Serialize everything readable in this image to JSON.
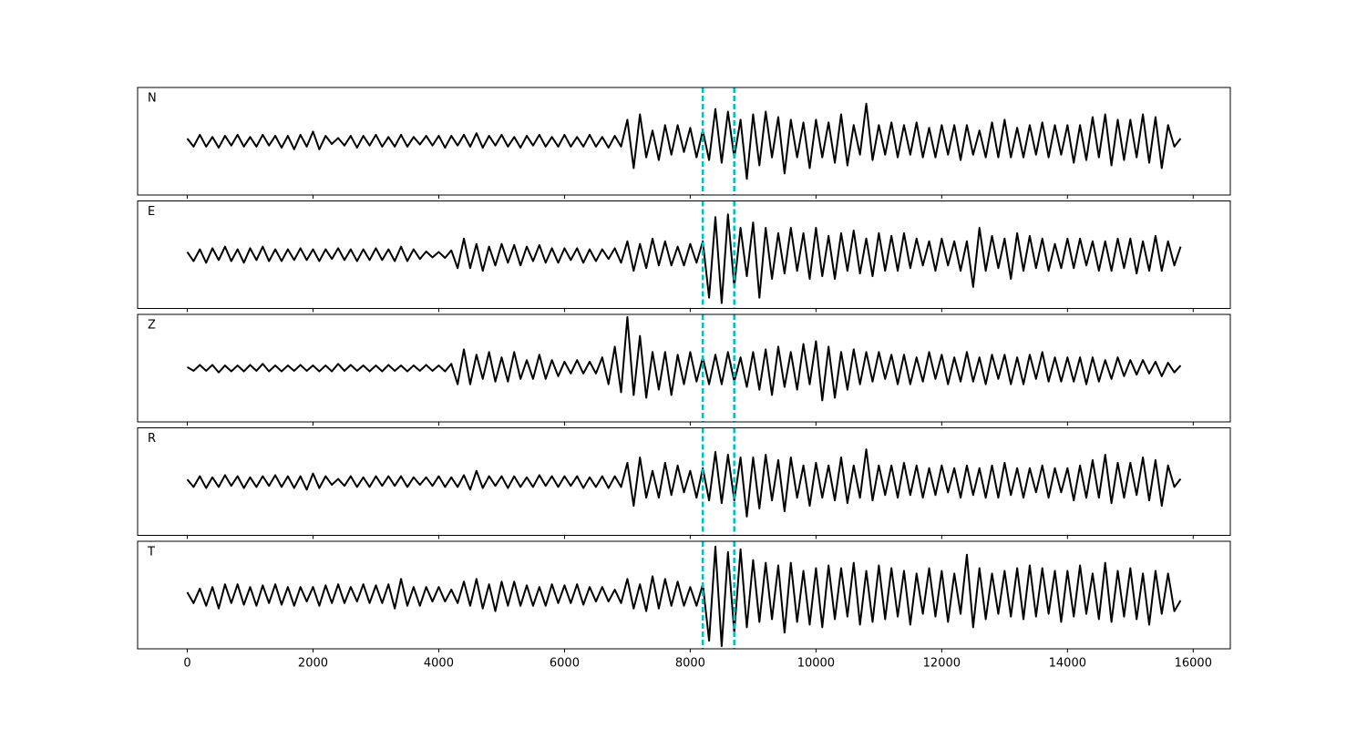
{
  "chart_data": {
    "type": "line",
    "x": [
      0,
      100,
      200,
      300,
      400,
      500,
      600,
      700,
      800,
      900,
      1000,
      1100,
      1200,
      1300,
      1400,
      1500,
      1600,
      1700,
      1800,
      1900,
      2000,
      2100,
      2200,
      2300,
      2400,
      2500,
      2600,
      2700,
      2800,
      2900,
      3000,
      3100,
      3200,
      3300,
      3400,
      3500,
      3600,
      3700,
      3800,
      3900,
      4000,
      4100,
      4200,
      4300,
      4400,
      4500,
      4600,
      4700,
      4800,
      4900,
      5000,
      5100,
      5200,
      5300,
      5400,
      5500,
      5600,
      5700,
      5800,
      5900,
      6000,
      6100,
      6200,
      6300,
      6400,
      6500,
      6600,
      6700,
      6800,
      6900,
      7000,
      7100,
      7200,
      7300,
      7400,
      7500,
      7600,
      7700,
      7800,
      7900,
      8000,
      8100,
      8200,
      8300,
      8400,
      8500,
      8600,
      8700,
      8800,
      8900,
      9000,
      9100,
      9200,
      9300,
      9400,
      9500,
      9600,
      9700,
      9800,
      9900,
      10000,
      10100,
      10200,
      10300,
      10400,
      10500,
      10600,
      10700,
      10800,
      10900,
      11000,
      11100,
      11200,
      11300,
      11400,
      11500,
      11600,
      11700,
      11800,
      11900,
      12000,
      12100,
      12200,
      12300,
      12400,
      12500,
      12600,
      12700,
      12800,
      12900,
      13000,
      13100,
      13200,
      13300,
      13400,
      13500,
      13600,
      13700,
      13800,
      13900,
      14000,
      14100,
      14200,
      14300,
      14400,
      14500,
      14600,
      14700,
      14800,
      14900,
      15000,
      15100,
      15200,
      15300,
      15400,
      15500,
      15600,
      15700,
      15800
    ],
    "series": [
      {
        "name": "N",
        "color": "#000000",
        "values": [
          0.05,
          -0.1,
          0.12,
          -0.1,
          0.08,
          -0.12,
          0.1,
          -0.08,
          0.12,
          -0.1,
          0.08,
          -0.1,
          0.12,
          -0.08,
          0.1,
          -0.12,
          0.1,
          -0.15,
          0.12,
          -0.1,
          0.18,
          -0.15,
          0.1,
          -0.05,
          0.06,
          -0.08,
          0.1,
          -0.12,
          0.1,
          -0.08,
          0.12,
          -0.1,
          0.08,
          -0.1,
          0.12,
          -0.1,
          0.08,
          -0.06,
          0.1,
          -0.08,
          0.1,
          -0.12,
          0.1,
          -0.08,
          0.12,
          -0.1,
          0.15,
          -0.12,
          0.1,
          -0.08,
          0.12,
          -0.1,
          0.08,
          -0.12,
          0.1,
          -0.08,
          0.12,
          -0.1,
          0.08,
          -0.1,
          0.12,
          -0.1,
          0.08,
          -0.1,
          0.12,
          -0.1,
          0.08,
          -0.12,
          0.1,
          -0.1,
          0.4,
          -0.5,
          0.5,
          -0.3,
          0.2,
          -0.35,
          0.3,
          -0.25,
          0.3,
          -0.2,
          0.25,
          -0.3,
          0.2,
          -0.35,
          0.6,
          -0.4,
          0.55,
          -0.3,
          0.4,
          -0.7,
          0.5,
          -0.45,
          0.55,
          -0.3,
          0.45,
          -0.6,
          0.4,
          -0.3,
          0.35,
          -0.5,
          0.4,
          -0.3,
          0.35,
          -0.4,
          0.5,
          -0.45,
          0.3,
          -0.25,
          0.7,
          -0.35,
          0.3,
          -0.25,
          0.35,
          -0.3,
          0.3,
          -0.25,
          0.35,
          -0.3,
          0.25,
          -0.3,
          0.3,
          -0.25,
          0.3,
          -0.35,
          0.3,
          -0.25,
          0.2,
          -0.3,
          0.35,
          -0.3,
          0.4,
          -0.3,
          0.25,
          -0.3,
          0.3,
          -0.25,
          0.35,
          -0.3,
          0.3,
          -0.25,
          0.3,
          -0.4,
          0.3,
          -0.35,
          0.45,
          -0.3,
          0.5,
          -0.45,
          0.4,
          -0.35,
          0.4,
          -0.3,
          0.5,
          -0.4,
          0.45,
          -0.5,
          0.3,
          -0.1,
          0.05
        ]
      },
      {
        "name": "E",
        "color": "#000000",
        "values": [
          0.05,
          -0.12,
          0.1,
          -0.15,
          0.12,
          -0.1,
          0.15,
          -0.12,
          0.1,
          -0.15,
          0.12,
          -0.1,
          0.15,
          -0.12,
          0.1,
          -0.12,
          0.1,
          -0.1,
          0.12,
          -0.1,
          0.1,
          -0.12,
          0.1,
          -0.08,
          0.12,
          -0.1,
          0.1,
          -0.12,
          0.1,
          -0.1,
          0.12,
          -0.1,
          0.1,
          -0.12,
          0.15,
          -0.12,
          0.1,
          -0.08,
          0.06,
          -0.05,
          0.05,
          -0.06,
          0.08,
          -0.25,
          0.3,
          -0.25,
          0.2,
          -0.3,
          0.15,
          -0.2,
          0.2,
          -0.15,
          0.18,
          -0.2,
          0.15,
          -0.12,
          0.18,
          -0.15,
          0.12,
          -0.15,
          0.12,
          -0.1,
          0.12,
          -0.15,
          0.1,
          -0.12,
          0.1,
          -0.08,
          0.12,
          -0.15,
          0.25,
          -0.3,
          0.2,
          -0.25,
          0.3,
          -0.2,
          0.25,
          -0.2,
          0.15,
          -0.2,
          0.2,
          -0.15,
          0.25,
          -0.8,
          0.7,
          -0.9,
          0.75,
          -0.6,
          0.5,
          -0.4,
          0.6,
          -0.8,
          0.5,
          -0.45,
          0.4,
          -0.35,
          0.5,
          -0.3,
          0.4,
          -0.45,
          0.5,
          -0.4,
          0.35,
          -0.45,
          0.4,
          -0.3,
          0.45,
          -0.35,
          0.3,
          -0.4,
          0.4,
          -0.3,
          0.35,
          -0.3,
          0.4,
          -0.25,
          0.3,
          -0.2,
          0.25,
          -0.3,
          0.3,
          -0.2,
          0.25,
          -0.3,
          0.25,
          -0.6,
          0.5,
          -0.3,
          0.35,
          -0.25,
          0.3,
          -0.45,
          0.4,
          -0.3,
          0.35,
          -0.25,
          0.3,
          -0.3,
          0.2,
          -0.25,
          0.3,
          -0.25,
          0.3,
          -0.2,
          0.25,
          -0.3,
          0.25,
          -0.3,
          0.3,
          -0.25,
          0.3,
          -0.35,
          0.25,
          -0.3,
          0.35,
          -0.3,
          0.25,
          -0.2,
          0.15
        ]
      },
      {
        "name": "Z",
        "color": "#000000",
        "values": [
          0.02,
          -0.05,
          0.06,
          -0.05,
          0.06,
          -0.08,
          0.05,
          -0.06,
          0.05,
          -0.06,
          0.06,
          -0.05,
          0.08,
          -0.06,
          0.05,
          -0.06,
          0.05,
          -0.05,
          0.06,
          -0.05,
          0.05,
          -0.06,
          0.05,
          -0.06,
          0.08,
          -0.05,
          0.06,
          -0.05,
          0.05,
          -0.06,
          0.05,
          -0.06,
          0.06,
          -0.05,
          0.05,
          -0.06,
          0.05,
          -0.05,
          0.06,
          -0.05,
          0.05,
          -0.06,
          0.08,
          -0.3,
          0.35,
          -0.3,
          0.25,
          -0.2,
          0.3,
          -0.25,
          0.2,
          -0.25,
          0.3,
          -0.2,
          0.15,
          -0.2,
          0.25,
          -0.2,
          0.15,
          -0.15,
          0.12,
          -0.1,
          0.15,
          -0.1,
          0.12,
          -0.1,
          0.2,
          -0.3,
          0.4,
          -0.45,
          0.95,
          -0.5,
          0.6,
          -0.55,
          0.3,
          -0.4,
          0.3,
          -0.5,
          0.25,
          -0.3,
          0.3,
          -0.25,
          0.2,
          -0.3,
          0.25,
          -0.3,
          0.3,
          -0.25,
          0.2,
          -0.35,
          0.3,
          -0.4,
          0.35,
          -0.5,
          0.4,
          -0.35,
          0.3,
          -0.4,
          0.45,
          -0.3,
          0.5,
          -0.6,
          0.4,
          -0.55,
          0.3,
          -0.4,
          0.35,
          -0.3,
          0.3,
          -0.25,
          0.3,
          -0.2,
          0.25,
          -0.3,
          0.25,
          -0.3,
          0.2,
          -0.25,
          0.3,
          -0.2,
          0.25,
          -0.3,
          0.2,
          -0.25,
          0.3,
          -0.25,
          0.2,
          -0.3,
          0.25,
          -0.2,
          0.25,
          -0.3,
          0.2,
          -0.3,
          0.25,
          -0.2,
          0.3,
          -0.25,
          0.2,
          -0.25,
          0.2,
          -0.25,
          0.2,
          -0.3,
          0.2,
          -0.25,
          0.15,
          -0.2,
          0.2,
          -0.15,
          0.15,
          -0.12,
          0.15,
          -0.1,
          0.12,
          -0.15,
          0.1,
          -0.08,
          0.05
        ]
      },
      {
        "name": "R",
        "color": "#000000",
        "values": [
          0.04,
          -0.1,
          0.1,
          -0.12,
          0.08,
          -0.1,
          0.12,
          -0.08,
          0.1,
          -0.12,
          0.08,
          -0.1,
          0.1,
          -0.08,
          0.12,
          -0.1,
          0.1,
          -0.12,
          0.1,
          -0.15,
          0.15,
          -0.12,
          0.1,
          -0.06,
          0.05,
          -0.08,
          0.1,
          -0.1,
          0.08,
          -0.1,
          0.1,
          -0.08,
          0.1,
          -0.08,
          0.1,
          -0.1,
          0.08,
          -0.06,
          0.08,
          -0.08,
          0.1,
          -0.1,
          0.08,
          -0.1,
          0.12,
          -0.15,
          0.2,
          -0.12,
          0.1,
          -0.08,
          0.1,
          -0.12,
          0.1,
          -0.1,
          0.08,
          -0.1,
          0.12,
          -0.08,
          0.1,
          -0.1,
          0.1,
          -0.08,
          0.1,
          -0.12,
          0.08,
          -0.1,
          0.1,
          -0.12,
          0.1,
          -0.1,
          0.35,
          -0.45,
          0.45,
          -0.3,
          0.2,
          -0.3,
          0.35,
          -0.25,
          0.3,
          -0.2,
          0.2,
          -0.3,
          0.25,
          -0.35,
          0.55,
          -0.4,
          0.5,
          -0.35,
          0.45,
          -0.65,
          0.45,
          -0.5,
          0.5,
          -0.35,
          0.4,
          -0.55,
          0.45,
          -0.3,
          0.3,
          -0.45,
          0.35,
          -0.3,
          0.3,
          -0.35,
          0.45,
          -0.4,
          0.3,
          -0.3,
          0.6,
          -0.35,
          0.3,
          -0.25,
          0.3,
          -0.3,
          0.35,
          -0.25,
          0.3,
          -0.3,
          0.25,
          -0.25,
          0.3,
          -0.2,
          0.25,
          -0.3,
          0.3,
          -0.25,
          0.25,
          -0.3,
          0.3,
          -0.3,
          0.35,
          -0.25,
          0.25,
          -0.3,
          0.25,
          -0.2,
          0.3,
          -0.3,
          0.25,
          -0.2,
          0.25,
          -0.35,
          0.3,
          -0.3,
          0.4,
          -0.3,
          0.5,
          -0.4,
          0.35,
          -0.3,
          0.35,
          -0.25,
          0.45,
          -0.35,
          0.4,
          -0.45,
          0.3,
          -0.1,
          0.05
        ]
      },
      {
        "name": "T",
        "color": "#000000",
        "values": [
          0.05,
          -0.15,
          0.12,
          -0.2,
          0.15,
          -0.25,
          0.2,
          -0.15,
          0.2,
          -0.18,
          0.15,
          -0.2,
          0.18,
          -0.15,
          0.2,
          -0.18,
          0.15,
          -0.2,
          0.15,
          -0.12,
          0.15,
          -0.2,
          0.18,
          -0.15,
          0.2,
          -0.15,
          0.15,
          -0.12,
          0.2,
          -0.15,
          0.18,
          -0.15,
          0.2,
          -0.25,
          0.3,
          -0.2,
          0.15,
          -0.2,
          0.15,
          -0.12,
          0.15,
          -0.12,
          0.1,
          -0.15,
          0.25,
          -0.2,
          0.3,
          -0.25,
          0.2,
          -0.3,
          0.25,
          -0.2,
          0.25,
          -0.2,
          0.18,
          -0.2,
          0.15,
          -0.2,
          0.2,
          -0.15,
          0.18,
          -0.15,
          0.2,
          -0.18,
          0.15,
          -0.12,
          0.15,
          -0.12,
          0.1,
          -0.15,
          0.3,
          -0.25,
          0.2,
          -0.3,
          0.35,
          -0.25,
          0.3,
          -0.2,
          0.25,
          -0.2,
          0.15,
          -0.2,
          0.2,
          -0.85,
          0.9,
          -0.95,
          0.8,
          -0.7,
          0.85,
          -0.6,
          0.65,
          -0.5,
          0.6,
          -0.45,
          0.55,
          -0.7,
          0.6,
          -0.5,
          0.45,
          -0.55,
          0.5,
          -0.6,
          0.55,
          -0.45,
          0.5,
          -0.4,
          0.6,
          -0.55,
          0.45,
          -0.5,
          0.55,
          -0.45,
          0.5,
          -0.4,
          0.45,
          -0.55,
          0.4,
          -0.35,
          0.5,
          -0.4,
          0.45,
          -0.5,
          0.4,
          -0.35,
          0.75,
          -0.6,
          0.5,
          -0.45,
          0.4,
          -0.35,
          0.45,
          -0.4,
          0.5,
          -0.45,
          0.55,
          -0.4,
          0.5,
          -0.35,
          0.45,
          -0.5,
          0.45,
          -0.4,
          0.55,
          -0.35,
          0.4,
          -0.45,
          0.6,
          -0.5,
          0.45,
          -0.4,
          0.5,
          -0.45,
          0.4,
          -0.55,
          0.45,
          -0.35,
          0.4,
          -0.3,
          -0.1
        ]
      }
    ],
    "xlim": [
      -790,
      16590
    ],
    "xticks": [
      0,
      2000,
      4000,
      6000,
      8000,
      10000,
      12000,
      14000,
      16000
    ],
    "ylim": [
      -1,
      1
    ],
    "vlines": [
      8200,
      8700
    ],
    "vline_color": "#00bfbf"
  }
}
